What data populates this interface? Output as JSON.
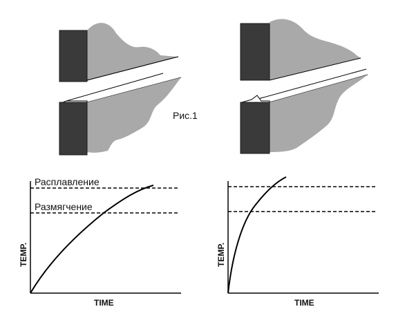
{
  "figure": {
    "caption": "Рис.1"
  },
  "colors": {
    "block_dark": "#3a3a3a",
    "block_edge": "#1a1a1a",
    "material_gray": "#a9a9a9",
    "line": "#000000"
  },
  "left_panel": {
    "x_axis_label": "TIME",
    "y_axis_label": "TEMP.",
    "level_labels": [
      "Расплавление",
      "Размягчение"
    ]
  },
  "right_panel": {
    "x_axis_label": "TIME",
    "y_axis_label": "TEMP."
  },
  "chart_data": [
    {
      "type": "line",
      "xlabel": "TIME",
      "ylabel": "TEMP.",
      "reference_lines": [
        {
          "label": "Расплавление",
          "style": "dashed"
        },
        {
          "label": "Размягчение",
          "style": "dashed"
        }
      ],
      "curve": "gradual rise, crosses softening then approaches melting level",
      "grid": false
    },
    {
      "type": "line",
      "xlabel": "TIME",
      "ylabel": "TEMP.",
      "reference_lines": [
        {
          "label": "",
          "style": "dashed"
        },
        {
          "label": "",
          "style": "dashed"
        }
      ],
      "curve": "steep rise, exceeds melting level quickly",
      "grid": false
    }
  ]
}
